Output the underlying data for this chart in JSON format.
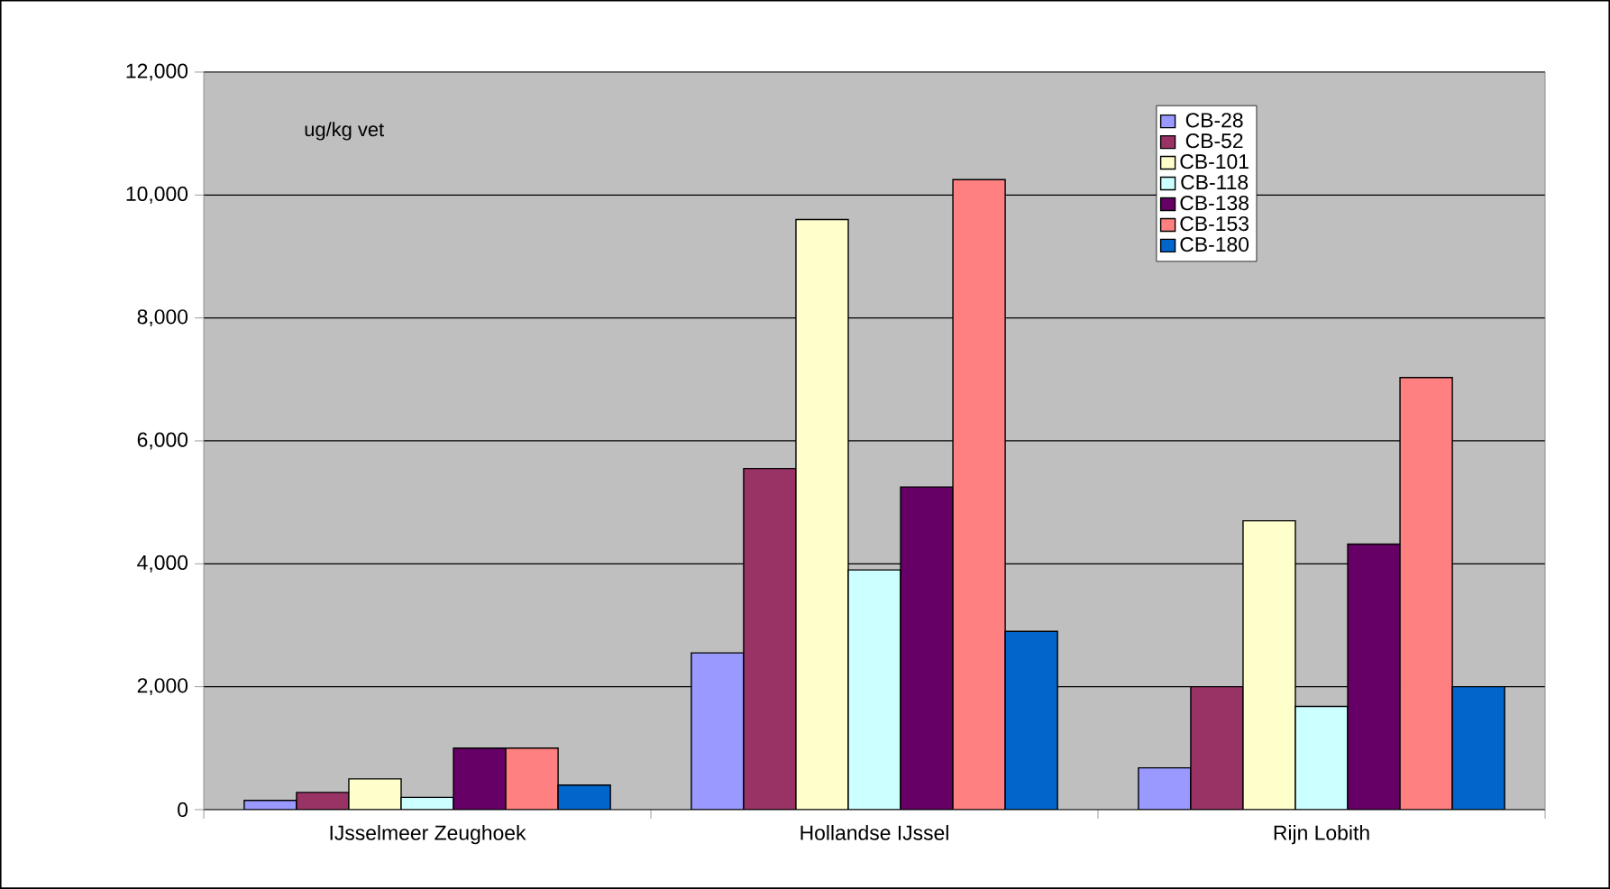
{
  "chart_data": {
    "type": "bar",
    "categories": [
      "IJsselmeer Zeughoek",
      "Hollandse IJssel",
      "Rijn Lobith"
    ],
    "series": [
      {
        "name": "CB-28",
        "color": "#9999ff",
        "values": [
          150,
          2550,
          680
        ]
      },
      {
        "name": "CB-52",
        "color": "#993366",
        "values": [
          280,
          5550,
          2000
        ]
      },
      {
        "name": "CB-101",
        "color": "#ffffcc",
        "values": [
          500,
          9600,
          4700
        ]
      },
      {
        "name": "CB-118",
        "color": "#ccffff",
        "values": [
          200,
          3900,
          1680
        ]
      },
      {
        "name": "CB-138",
        "color": "#660066",
        "values": [
          1000,
          5250,
          4320
        ]
      },
      {
        "name": "CB-153",
        "color": "#ff8080",
        "values": [
          1000,
          10250,
          7030
        ]
      },
      {
        "name": "CB-180",
        "color": "#0066cc",
        "values": [
          400,
          2900,
          2000
        ]
      }
    ],
    "ylim": [
      0,
      12000
    ],
    "yticks": [
      0,
      {
        "value": 2000,
        "label": "2,000"
      },
      {
        "value": 4000,
        "label": "4,000"
      },
      {
        "value": 6000,
        "label": "6,000"
      },
      {
        "value": 8000,
        "label": "8,000"
      },
      {
        "value": 10000,
        "label": "10,000"
      },
      {
        "value": 12000,
        "label": "12,000"
      }
    ],
    "grid": "y",
    "legend": "top right",
    "annotations": [
      "ug/kg vet"
    ]
  }
}
